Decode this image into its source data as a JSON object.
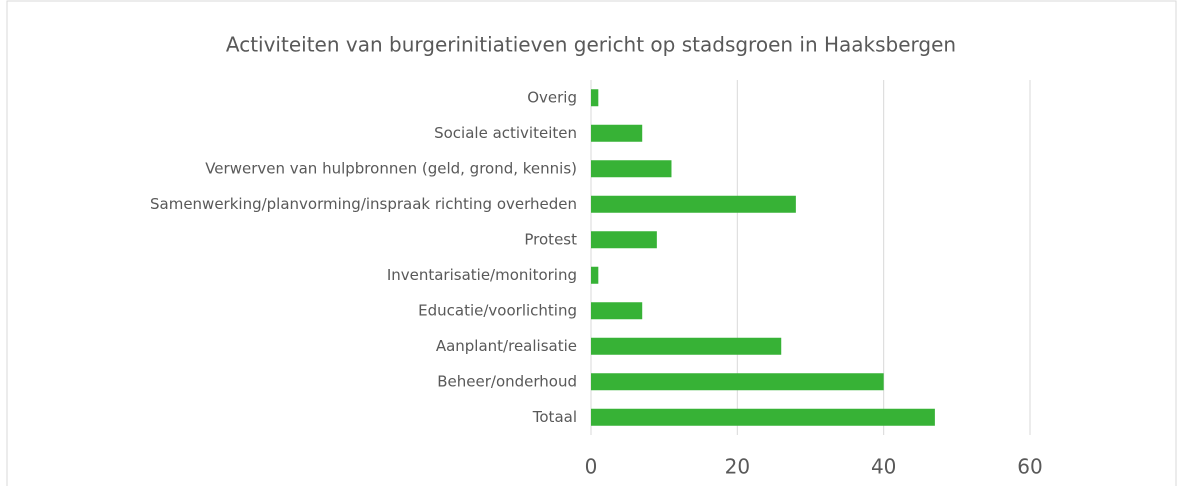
{
  "chart_data": {
    "type": "bar",
    "orientation": "horizontal",
    "title": "Activiteiten van burgerinitiatieven gericht op stadsgroen in Haaksbergen",
    "categories": [
      "Overig",
      "Sociale activiteiten",
      "Verwerven van hulpbronnen (geld, grond, kennis)",
      "Samenwerking/planvorming/inspraak richting overheden",
      "Protest",
      "Inventarisatie/monitoring",
      "Educatie/voorlichting",
      "Aanplant/realisatie",
      "Beheer/onderhoud",
      "Totaal"
    ],
    "values": [
      1,
      7,
      11,
      28,
      9,
      1,
      7,
      26,
      40,
      47
    ],
    "color": "#37b236",
    "xlim": [
      0,
      60
    ],
    "xticks": [
      0,
      20,
      40,
      60
    ],
    "grid": true
  }
}
